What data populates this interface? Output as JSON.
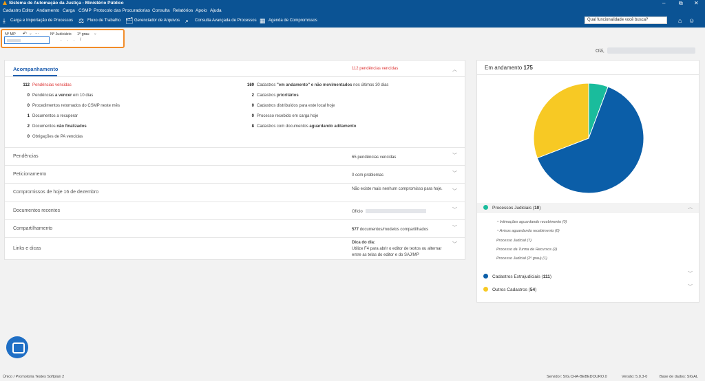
{
  "app": {
    "title": "Sistema de Automação da Justiça - Ministério Público"
  },
  "menu": [
    "Cadastro",
    "Editor",
    "Andamento",
    "Carga",
    "CSMP",
    "Protocolo das Procuradorias",
    "Consulta",
    "Relatórios",
    "Apoio",
    "Ajuda"
  ],
  "toolbar": {
    "items": [
      "Carga e Importação de Processos",
      "Fluxo de Trabalho",
      "Gerenciador de Arquivos",
      "Consulta Avançada de Processos",
      "Agenda de Compromissos"
    ],
    "search_placeholder": "Qual funcionalidade você busca?"
  },
  "filter": {
    "mp_label": "Nº MP",
    "nj_label": "Nº Judiciário",
    "grau": "1º grau",
    "nj_value": ". . . /"
  },
  "greeting": "Olá,",
  "acompanhamento": {
    "title": "Acompanhamento",
    "status": "112 pendências vencidas",
    "left_stats": [
      {
        "n": "112",
        "pre": "Pendências vencidas",
        "bold": "",
        "post": "",
        "red": true
      },
      {
        "n": "0",
        "pre": "Pendências ",
        "bold": "a vencer",
        "post": " em 10 dias",
        "red": false
      },
      {
        "n": "0",
        "pre": "Procedimentos retornados do CSMP neste mês",
        "bold": "",
        "post": "",
        "red": false
      },
      {
        "n": "1",
        "pre": "Documentos a recuperar",
        "bold": "",
        "post": "",
        "red": false
      },
      {
        "n": "2",
        "pre": "Documentos ",
        "bold": "não finalizados",
        "post": "",
        "red": false
      },
      {
        "n": "0",
        "pre": "Obrigações de PA vencidas",
        "bold": "",
        "post": "",
        "red": false
      }
    ],
    "right_stats": [
      {
        "n": "169",
        "pre": "Cadastros ",
        "bold": "\"em andamento\" e não movimentados",
        "post": " nos últimos 30 dias"
      },
      {
        "n": "2",
        "pre": "Cadastros ",
        "bold": "prioritários",
        "post": ""
      },
      {
        "n": "0",
        "pre": "Cadastros distribuídos para este local hoje",
        "bold": "",
        "post": ""
      },
      {
        "n": "0",
        "pre": "Processo recebido em carga hoje",
        "bold": "",
        "post": ""
      },
      {
        "n": "8",
        "pre": "Cadastros com documentos ",
        "bold": "aguardando aditamento",
        "post": ""
      }
    ]
  },
  "sections": [
    {
      "title": "Pendências",
      "status": "65 pendências vencidas",
      "red": true
    },
    {
      "title": "Peticionamento",
      "status": "0 com problemas",
      "red": true
    },
    {
      "title": "Compromissos de hoje 16 de dezembro",
      "status": "Não existe mais nenhum compromisso para hoje.",
      "red": false
    },
    {
      "title": "Documentos recentes",
      "status": "Ofício",
      "red": false
    },
    {
      "title": "Compartilhamento",
      "status_n": "577",
      "status": "documentos/modelos compartilhados",
      "red": false
    },
    {
      "title": "Links e dicas",
      "tip_title": "Dica do dia:",
      "status": "Utilize F4 para abrir o editor de textos ou alternar entre as telas do editor e do SAJ/MP",
      "red": false
    }
  ],
  "andamento": {
    "title": "Em andamento",
    "total": "175",
    "chart_data": {
      "type": "pie",
      "title": "Em andamento 175",
      "series": [
        {
          "name": "Processos Judiciais",
          "value": 10,
          "color": "#1abc9c"
        },
        {
          "name": "Cadastros Extrajudiciais",
          "value": 111,
          "color": "#0b5ea8"
        },
        {
          "name": "Outros Cadastros",
          "value": 54,
          "color": "#f7c924"
        }
      ]
    },
    "legend": [
      {
        "label": "Processos Judiciais",
        "count": "10",
        "color": "#1abc9c"
      },
      {
        "label": "Cadastros Extrajudiciais",
        "count": "111",
        "color": "#0b5ea8"
      },
      {
        "label": "Outros Cadastros",
        "count": "54",
        "color": "#f7c924"
      }
    ],
    "processos_sub": [
      "Intimações aguardando recebimento (0)",
      "Avisos aguardando recebimento (0)",
      "Processo Judicial (7)",
      "Processo da Turma de Recursos (2)",
      "Processo Judicial (2º grau) (1)"
    ]
  },
  "statusbar": {
    "left": "Único / Promotoria Testes Softplan 2",
    "server": "Servidor: SIG.CHA-BEBEDOURO.0",
    "version": "Versão: 5.0.3-0",
    "db": "Base de dados: SIGAL"
  }
}
